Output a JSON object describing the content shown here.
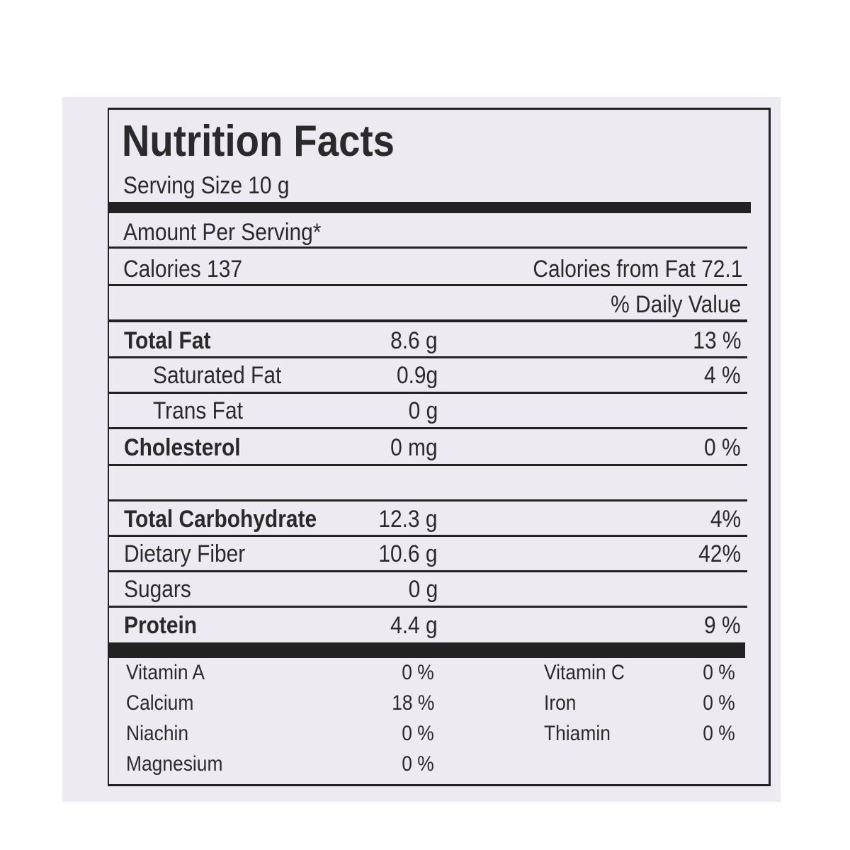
{
  "label": {
    "title": "Nutrition Facts",
    "serving_size": "Serving Size 10 g",
    "amount_per_serving": "Amount Per Serving*",
    "calories": "Calories 137",
    "calories_from_fat": "Calories from Fat 72.1",
    "daily_value_header": "% Daily Value",
    "rows": [
      {
        "name": "Total Fat",
        "amount": "8.6 g",
        "daily_value": "13 %",
        "bold": true
      },
      {
        "name": "Saturated Fat",
        "amount": "0.9g",
        "daily_value": "4 %",
        "indent": true
      },
      {
        "name": "Trans Fat",
        "amount": "0 g",
        "indent": true
      },
      {
        "name": "Cholesterol",
        "amount": "0 mg",
        "daily_value": "0 %",
        "bold": true
      },
      {
        "name": "Total Carbohydrate",
        "amount": "12.3 g",
        "daily_value": "4%",
        "bold": true
      },
      {
        "name": "Dietary Fiber",
        "amount": "10.6 g",
        "daily_value": "42%"
      },
      {
        "name": "Sugars",
        "amount": "0 g"
      },
      {
        "name": "Protein",
        "amount": "4.4 g",
        "daily_value": "9 %",
        "bold": true
      }
    ],
    "vitamins": {
      "left": [
        {
          "name": "Vitamin A",
          "value": "0 %"
        },
        {
          "name": "Calcium",
          "value": "18 %"
        },
        {
          "name": "Niachin",
          "value": "0 %"
        },
        {
          "name": "Magnesium",
          "value": "0 %"
        }
      ],
      "right": [
        {
          "name": "Vitamin C",
          "value": "0 %"
        },
        {
          "name": "Iron",
          "value": "0 %"
        },
        {
          "name": "Thiamin",
          "value": "0 %"
        }
      ]
    }
  }
}
